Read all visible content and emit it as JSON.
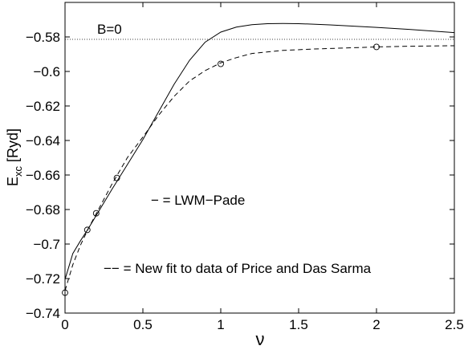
{
  "chart_data": {
    "type": "line",
    "xlabel": "ν",
    "ylabel_main": "E",
    "ylabel_sub": "xc",
    "ylabel_unit": " [Ryd]",
    "xlim": [
      0,
      2.5
    ],
    "ylim": [
      -0.74,
      -0.56
    ],
    "xticks": [
      0,
      0.5,
      1,
      1.5,
      2,
      2.5
    ],
    "xtick_labels": [
      "0",
      "0.5",
      "1",
      "1.5",
      "2",
      "2.5"
    ],
    "yticks": [
      -0.74,
      -0.72,
      -0.7,
      -0.68,
      -0.66,
      -0.64,
      -0.62,
      -0.6,
      -0.58
    ],
    "ytick_labels": [
      "−0.74",
      "−0.72",
      "−0.7",
      "−0.68",
      "−0.66",
      "−0.64",
      "−0.62",
      "−0.6",
      "−0.58"
    ],
    "annotations": {
      "b_label": "B=0",
      "legend_solid": "− = LWM−Pade",
      "legend_dashed": "−− = New fit to data of Price and Das Sarma"
    },
    "reference_line": {
      "style": "dotted",
      "y": -0.5814
    },
    "series": [
      {
        "style": "solid",
        "x": [
          0,
          0.05,
          0.1,
          0.15,
          0.2,
          0.3,
          0.4,
          0.5,
          0.6,
          0.7,
          0.8,
          0.9,
          1.0,
          1.1,
          1.2,
          1.3,
          1.4,
          1.5,
          1.7,
          2.0,
          2.2,
          2.5
        ],
        "y": [
          -0.7205,
          -0.7055,
          -0.698,
          -0.691,
          -0.6835,
          -0.6685,
          -0.654,
          -0.6395,
          -0.6235,
          -0.6075,
          -0.5935,
          -0.583,
          -0.5772,
          -0.5743,
          -0.5729,
          -0.5723,
          -0.5722,
          -0.5723,
          -0.573,
          -0.5745,
          -0.5756,
          -0.5775
        ]
      },
      {
        "style": "dashed",
        "x": [
          0,
          0.05,
          0.1,
          0.15,
          0.2,
          0.3,
          0.4,
          0.5,
          0.6,
          0.7,
          0.8,
          0.9,
          1.0,
          1.1,
          1.2,
          1.4,
          1.6,
          1.8,
          2.0,
          2.2,
          2.5
        ],
        "y": [
          -0.727,
          -0.712,
          -0.7005,
          -0.691,
          -0.6825,
          -0.6655,
          -0.65,
          -0.638,
          -0.6255,
          -0.6145,
          -0.6055,
          -0.5995,
          -0.595,
          -0.592,
          -0.5896,
          -0.5878,
          -0.587,
          -0.5864,
          -0.5858,
          -0.5854,
          -0.5851
        ]
      }
    ],
    "markers": {
      "shape": "open-circle",
      "x": [
        0,
        0.143,
        0.2,
        0.333,
        1.0,
        2.0
      ],
      "y": [
        -0.7282,
        -0.6918,
        -0.6822,
        -0.6617,
        -0.5956,
        -0.5858
      ]
    }
  }
}
